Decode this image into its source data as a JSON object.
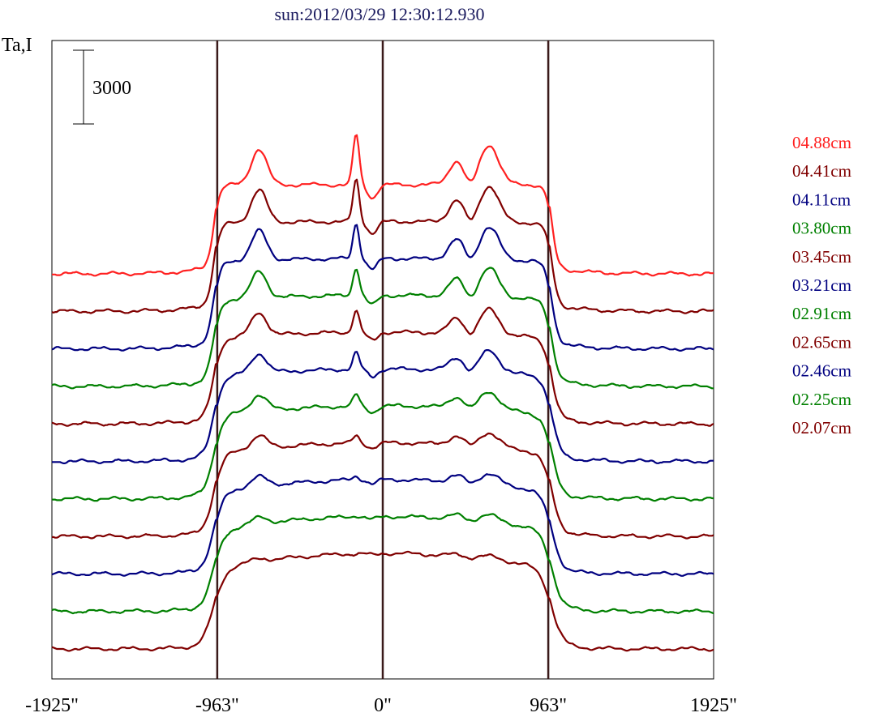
{
  "chart_data": {
    "type": "line",
    "title": "sun:2012/03/29 12:30:12.930",
    "ylabel": "Ta,I",
    "scale_bar_label": "3000",
    "x_ticks": [
      "-1925\"",
      "-963\"",
      "0\"",
      "963\"",
      "1925\""
    ],
    "x_tick_values": [
      -1925,
      -963,
      0,
      963,
      1925
    ],
    "xlim": [
      -1925,
      1925
    ],
    "vertical_lines": [
      -963,
      0,
      963
    ],
    "legend_placement": "right",
    "grid": false,
    "series": [
      {
        "name": "04.88cm",
        "color": "#ff2020",
        "offset": 0
      },
      {
        "name": "04.41cm",
        "color": "#800000",
        "offset": 1
      },
      {
        "name": "04.11cm",
        "color": "#000080",
        "offset": 2
      },
      {
        "name": "03.80cm",
        "color": "#008000",
        "offset": 3
      },
      {
        "name": "03.45cm",
        "color": "#800000",
        "offset": 4
      },
      {
        "name": "03.21cm",
        "color": "#000080",
        "offset": 5
      },
      {
        "name": "02.91cm",
        "color": "#008000",
        "offset": 6
      },
      {
        "name": "02.65cm",
        "color": "#800000",
        "offset": 7
      },
      {
        "name": "02.46cm",
        "color": "#000080",
        "offset": 8
      },
      {
        "name": "02.25cm",
        "color": "#008000",
        "offset": 9
      },
      {
        "name": "02.07cm",
        "color": "#800000",
        "offset": 10
      }
    ]
  }
}
